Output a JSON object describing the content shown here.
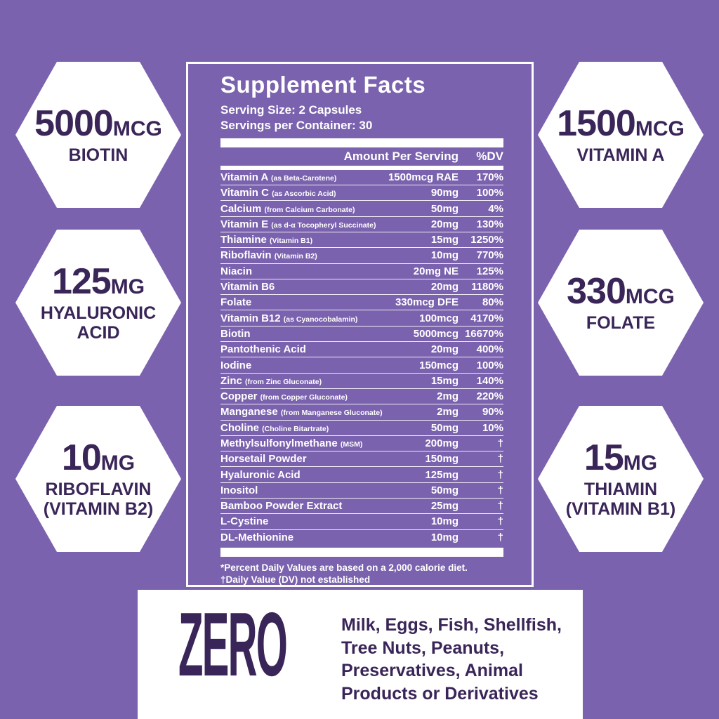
{
  "colors": {
    "background_purple": "#7a62ae",
    "dark_purple_text": "#3a2558",
    "white": "#ffffff"
  },
  "badges": {
    "left": [
      {
        "amount": "5000",
        "unit": "MCG",
        "name": "BIOTIN"
      },
      {
        "amount": "125",
        "unit": "MG",
        "name": "HYALURONIC ACID"
      },
      {
        "amount": "10",
        "unit": "MG",
        "name": "RIBOFLAVIN (VITAMIN B2)"
      }
    ],
    "right": [
      {
        "amount": "1500",
        "unit": "MCG",
        "name": "VITAMIN A"
      },
      {
        "amount": "330",
        "unit": "MCG",
        "name": "FOLATE"
      },
      {
        "amount": "15",
        "unit": "MG",
        "name": "THIAMIN (VITAMIN B1)"
      }
    ]
  },
  "panel": {
    "title": "Supplement Facts",
    "serving_size": "Serving Size: 2 Capsules",
    "servings_per_container": "Servings per Container: 30",
    "col_amount": "Amount Per Serving",
    "col_dv": "%DV",
    "rows": [
      {
        "name": "Vitamin A",
        "note": "(as Beta-Carotene)",
        "amount": "1500mcg RAE",
        "dv": "170%"
      },
      {
        "name": "Vitamin C",
        "note": "(as Ascorbic Acid)",
        "amount": "90mg",
        "dv": "100%"
      },
      {
        "name": "Calcium",
        "note": "(from Calcium Carbonate)",
        "amount": "50mg",
        "dv": "4%"
      },
      {
        "name": "Vitamin E",
        "note": "(as d-α Tocopheryl Succinate)",
        "amount": "20mg",
        "dv": "130%"
      },
      {
        "name": "Thiamine",
        "note": "(Vitamin B1)",
        "amount": "15mg",
        "dv": "1250%"
      },
      {
        "name": "Riboflavin",
        "note": "(Vitamin B2)",
        "amount": "10mg",
        "dv": "770%"
      },
      {
        "name": "Niacin",
        "note": "",
        "amount": "20mg NE",
        "dv": "125%"
      },
      {
        "name": "Vitamin B6",
        "note": "",
        "amount": "20mg",
        "dv": "1180%"
      },
      {
        "name": "Folate",
        "note": "",
        "amount": "330mcg DFE",
        "dv": "80%"
      },
      {
        "name": "Vitamin B12",
        "note": "(as Cyanocobalamin)",
        "amount": "100mcg",
        "dv": "4170%"
      },
      {
        "name": "Biotin",
        "note": "",
        "amount": "5000mcg",
        "dv": "16670%"
      },
      {
        "name": "Pantothenic Acid",
        "note": "",
        "amount": "20mg",
        "dv": "400%"
      },
      {
        "name": "Iodine",
        "note": "",
        "amount": "150mcg",
        "dv": "100%"
      },
      {
        "name": "Zinc",
        "note": "(from Zinc Gluconate)",
        "amount": "15mg",
        "dv": "140%"
      },
      {
        "name": "Copper",
        "note": "(from Copper Gluconate)",
        "amount": "2mg",
        "dv": "220%"
      },
      {
        "name": "Manganese",
        "note": "(from Manganese Gluconate)",
        "amount": "2mg",
        "dv": "90%"
      },
      {
        "name": "Choline",
        "note": "(Choline Bitartrate)",
        "amount": "50mg",
        "dv": "10%"
      },
      {
        "name": "Methylsulfonylmethane",
        "note": "(MSM)",
        "amount": "200mg",
        "dv": "†"
      },
      {
        "name": "Horsetail Powder",
        "note": "",
        "amount": "150mg",
        "dv": "†"
      },
      {
        "name": "Hyaluronic Acid",
        "note": "",
        "amount": "125mg",
        "dv": "†"
      },
      {
        "name": "Inositol",
        "note": "",
        "amount": "50mg",
        "dv": "†"
      },
      {
        "name": "Bamboo Powder Extract",
        "note": "",
        "amount": "25mg",
        "dv": "†"
      },
      {
        "name": "L-Cystine",
        "note": "",
        "amount": "10mg",
        "dv": "†"
      },
      {
        "name": "DL-Methionine",
        "note": "",
        "amount": "10mg",
        "dv": "†"
      }
    ],
    "footnote1": "*Percent Daily Values are based on a 2,000 calorie diet.",
    "footnote2": "†Daily Value (DV) not established"
  },
  "zero_box": {
    "headline": "ZERO",
    "text": "Milk, Eggs, Fish, Shellfish, Tree Nuts, Peanuts, Preservatives, Animal Products or Derivatives"
  }
}
